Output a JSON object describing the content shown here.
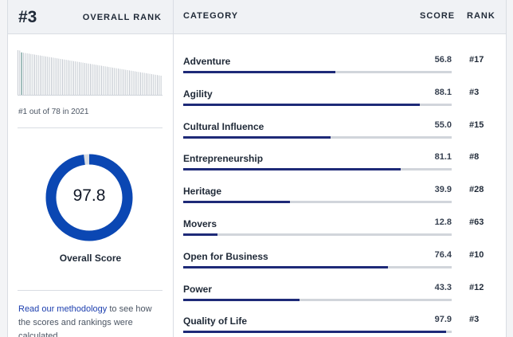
{
  "overall": {
    "rank": "#3",
    "rank_label": "OVERALL RANK",
    "rank_note": "#1 out of 78 in 2021",
    "score": "97.8",
    "score_value": 97.8,
    "score_label": "Overall Score",
    "methodology_link": "Read our methodology",
    "methodology_text": " to see how the scores and rankings were calculated."
  },
  "table": {
    "category_header": "CATEGORY",
    "score_header": "SCORE",
    "rank_header": "RANK",
    "rows": [
      {
        "name": "Adventure",
        "score": "56.8",
        "value": 56.8,
        "rank": "#17"
      },
      {
        "name": "Agility",
        "score": "88.1",
        "value": 88.1,
        "rank": "#3"
      },
      {
        "name": "Cultural Influence",
        "score": "55.0",
        "value": 55.0,
        "rank": "#15"
      },
      {
        "name": "Entrepreneurship",
        "score": "81.1",
        "value": 81.1,
        "rank": "#8"
      },
      {
        "name": "Heritage",
        "score": "39.9",
        "value": 39.9,
        "rank": "#28"
      },
      {
        "name": "Movers",
        "score": "12.8",
        "value": 12.8,
        "rank": "#63"
      },
      {
        "name": "Open for Business",
        "score": "76.4",
        "value": 76.4,
        "rank": "#10"
      },
      {
        "name": "Power",
        "score": "43.3",
        "value": 43.3,
        "rank": "#12"
      },
      {
        "name": "Quality of Life",
        "score": "97.9",
        "value": 97.9,
        "rank": "#3"
      }
    ]
  },
  "colors": {
    "accent": "#0b47b3",
    "bar_fill": "#1e2a78",
    "sparkline_highlight": "#2f6f6a"
  }
}
